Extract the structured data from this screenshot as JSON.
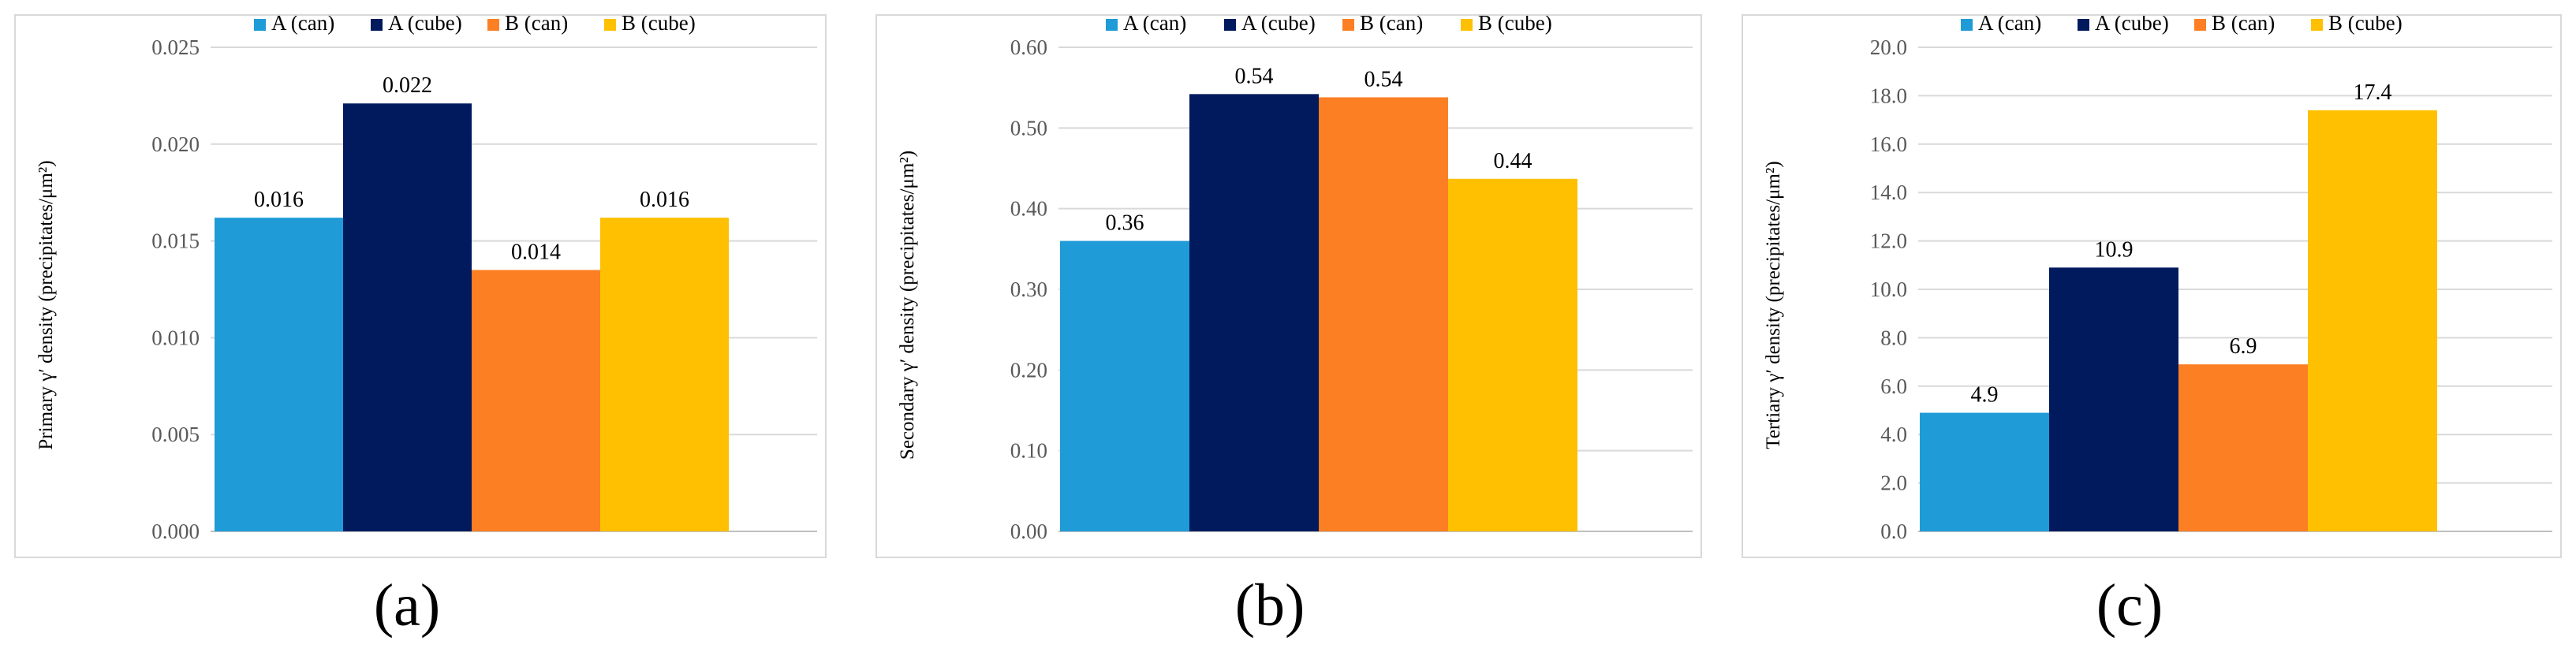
{
  "colors": {
    "series": [
      "#1f9bd7",
      "#011a5e",
      "#fd7f23",
      "#fec000"
    ],
    "grid": "#d9d9d9",
    "axis": "#bfbfbf",
    "text": "#000000",
    "tick": "#595959"
  },
  "legend": [
    "A (can)",
    "A (cube)",
    "B (can)",
    "B (cube)"
  ],
  "chart_data": [
    {
      "type": "bar",
      "caption": "(a)",
      "ylabel": "Primary γ′ density (precipitates/μm²)",
      "ylim": [
        0,
        0.025
      ],
      "yticks": [
        "0.000",
        "0.005",
        "0.010",
        "0.015",
        "0.020",
        "0.025"
      ],
      "categories": [
        "A (can)",
        "A (cube)",
        "B (can)",
        "B (cube)"
      ],
      "values": [
        0.0162,
        0.0221,
        0.0135,
        0.0162
      ],
      "labels": [
        "0.016",
        "0.022",
        "0.014",
        "0.016"
      ]
    },
    {
      "type": "bar",
      "caption": "(b)",
      "ylabel": "Secondary γ′ density (precipitates/μm²)",
      "ylim": [
        0,
        0.6
      ],
      "yticks": [
        "0.00",
        "0.10",
        "0.20",
        "0.30",
        "0.40",
        "0.50",
        "0.60"
      ],
      "categories": [
        "A (can)",
        "A (cube)",
        "B (can)",
        "B (cube)"
      ],
      "values": [
        0.36,
        0.542,
        0.538,
        0.437
      ],
      "labels": [
        "0.36",
        "0.54",
        "0.54",
        "0.44"
      ]
    },
    {
      "type": "bar",
      "caption": "(c)",
      "ylabel": "Tertiary γ′ density (precipitates/μm²)",
      "ylim": [
        0,
        20
      ],
      "yticks": [
        "0.0",
        "2.0",
        "4.0",
        "6.0",
        "8.0",
        "10.0",
        "12.0",
        "14.0",
        "16.0",
        "18.0",
        "20.0"
      ],
      "categories": [
        "A (can)",
        "A (cube)",
        "B (can)",
        "B (cube)"
      ],
      "values": [
        4.9,
        10.9,
        6.9,
        17.4
      ],
      "labels": [
        "4.9",
        "10.9",
        "6.9",
        "17.4"
      ]
    }
  ]
}
